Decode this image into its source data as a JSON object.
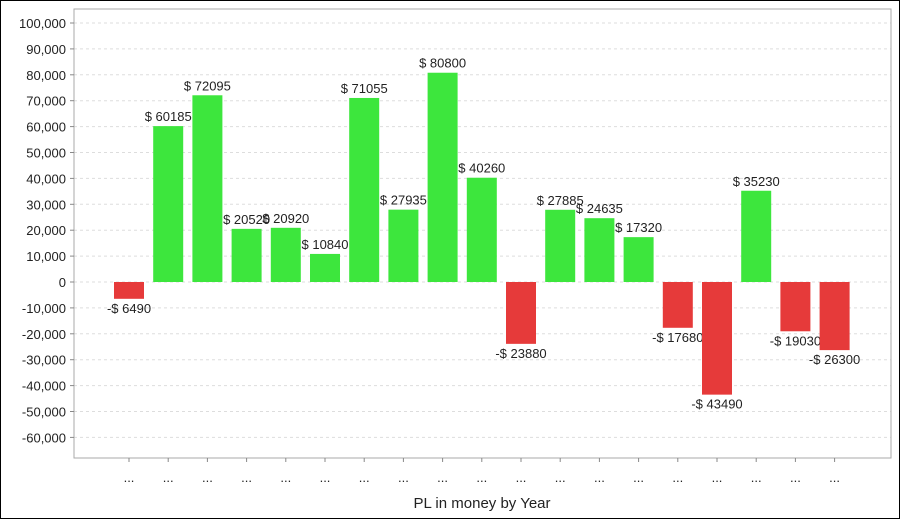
{
  "chart_data": {
    "type": "bar",
    "title": "",
    "xlabel": "PL in money by Year",
    "ylabel": "",
    "ylim": [
      -70000,
      100000
    ],
    "yticks": [
      100000,
      90000,
      80000,
      70000,
      60000,
      50000,
      40000,
      30000,
      20000,
      10000,
      0,
      -10000,
      -20000,
      -30000,
      -40000,
      -50000,
      -60000
    ],
    "ytick_labels": [
      "100,000",
      "90,000",
      "80,000",
      "70,000",
      "60,000",
      "50,000",
      "40,000",
      "30,000",
      "20,000",
      "10,000",
      "0",
      "-10,000",
      "-20,000",
      "-30,000",
      "-40,000",
      "-50,000",
      "-60,000"
    ],
    "grid": true,
    "categories": [
      "...",
      "...",
      "...",
      "...",
      "...",
      "...",
      "...",
      "...",
      "...",
      "...",
      "...",
      "...",
      "...",
      "...",
      "...",
      "...",
      "...",
      "...",
      "..."
    ],
    "values": [
      -6490,
      60185,
      72095,
      20520,
      20920,
      10840,
      71055,
      27935,
      80800,
      40260,
      -23880,
      27885,
      24635,
      17320,
      -17680,
      -43490,
      35230,
      -19030,
      -26300
    ],
    "data_labels": [
      "-$ 6490",
      "$ 60185",
      "$ 72095",
      "$ 20520",
      "$ 20920",
      "$ 10840",
      "$ 71055",
      "$ 27935",
      "$ 80800",
      "$ 40260",
      "-$ 23880",
      "$ 27885",
      "$ 24635",
      "$ 17320",
      "-$ 17680",
      "-$ 43490",
      "$ 35230",
      "-$ 19030",
      "-$ 26300"
    ],
    "colors": {
      "positive": "#3de63d",
      "negative": "#e63a3a"
    }
  }
}
